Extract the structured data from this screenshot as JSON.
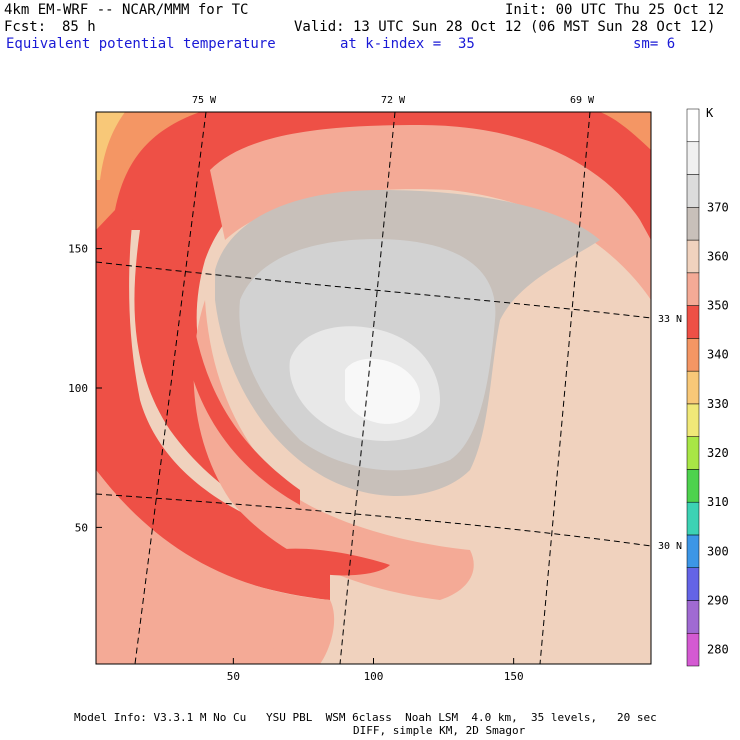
{
  "header": {
    "model": "4km EM-WRF -- NCAR/MMM for TC",
    "init": "Init: 00 UTC Thu 25 Oct 12",
    "fcst_label": "Fcst:",
    "fcst_value": "85 h",
    "valid": "Valid: 13 UTC Sun 28 Oct 12 (06 MST Sun 28 Oct 12)",
    "field": "Equivalent potential temperature",
    "level": "at k-index =  35",
    "smooth": "sm= 6"
  },
  "footer": {
    "line1": "Model Info: V3.3.1 M No Cu   YSU PBL  WSM 6class  Noah LSM  4.0 km,  35 levels,   20 sec",
    "line2": "DIFF, simple KM, 2D Smagor"
  },
  "chart_data": {
    "type": "heatmap",
    "title": "Equivalent potential temperature",
    "x_ticks": [
      50,
      100,
      150
    ],
    "y_ticks": [
      50,
      100,
      150
    ],
    "xlim": [
      1,
      199
    ],
    "ylim": [
      1,
      199
    ],
    "lon_labels": [
      "75 W",
      "72 W",
      "69 W"
    ],
    "lat_labels": [
      "33 N",
      "30 N"
    ],
    "colorbar": {
      "unit": "K",
      "labels": [
        "280",
        "290",
        "300",
        "310",
        "320",
        "330",
        "340",
        "350",
        "360",
        "370"
      ],
      "colors": [
        "#d45ad2",
        "#a06ad2",
        "#6464e6",
        "#3c96e6",
        "#3cd2b4",
        "#4ed24e",
        "#a8e646",
        "#f0e878",
        "#f8c878",
        "#f49664",
        "#ee5046",
        "#f4aa96",
        "#f0d2be",
        "#c8c0ba",
        "#dcdcdc",
        "#f0f0f0",
        "#ffffff"
      ]
    },
    "field_colors": {
      "c330": "#f49664",
      "c335": "#ee5046",
      "c340": "#f08a7c",
      "c345": "#f4aa96",
      "c350": "#f0d2be",
      "c355": "#c8c0ba",
      "c360": "#d2d2d2",
      "c365": "#e8e8e8",
      "c370": "#f8f8f8",
      "c320": "#f8c878"
    }
  }
}
